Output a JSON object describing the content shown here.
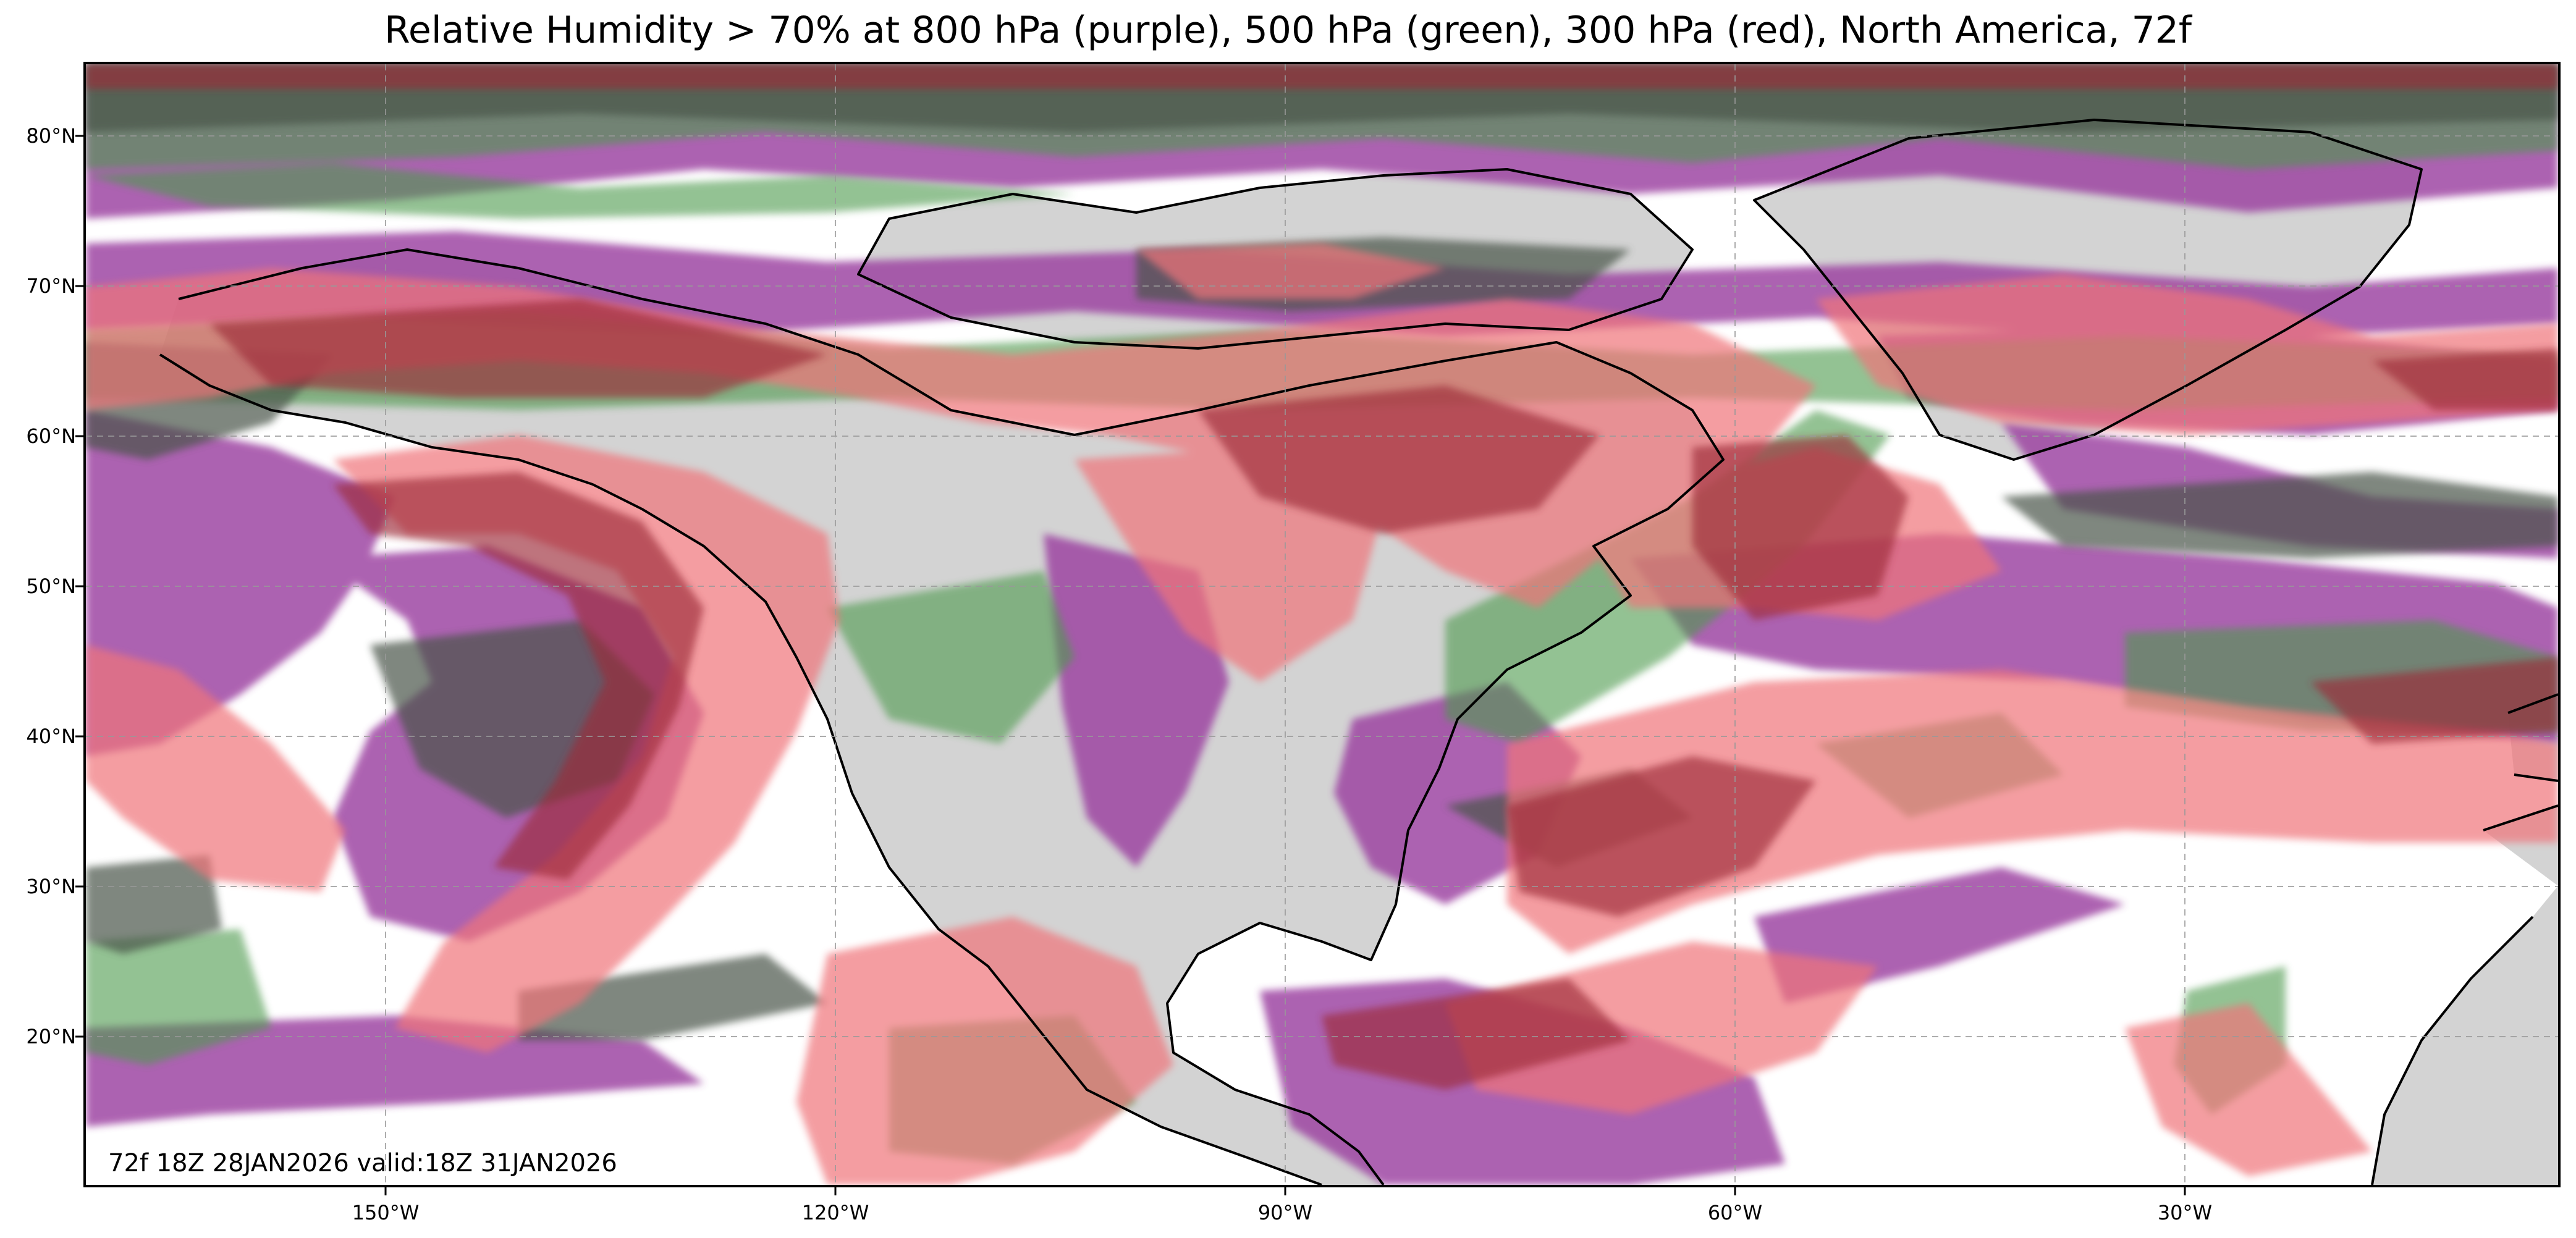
{
  "title": "Relative Humidity > 70% at 800 hPa (purple), 500 hPa (green), 300 hPa (red), North America, 72f",
  "valid_text": "72f 18Z 28JAN2026 valid:18Z 31JAN2026",
  "map": {
    "region": "North America",
    "projection": "PlateCarree",
    "lon_range": [
      -170,
      -5
    ],
    "lat_range": [
      10,
      85
    ],
    "gridlines": true
  },
  "latitude_labels": [
    "80°N",
    "70°N",
    "60°N",
    "50°N",
    "40°N",
    "30°N",
    "20°N"
  ],
  "longitude_labels": [
    "150°W",
    "120°W",
    "90°W",
    "60°W",
    "30°W"
  ],
  "layers": [
    {
      "name": "800 hPa",
      "color": "#9b3fa0"
    },
    {
      "name": "500 hPa",
      "color": "#4e9a4e"
    },
    {
      "name": "300 hPa",
      "color": "#f0747a"
    }
  ],
  "land_color": "#d3d3d3"
}
